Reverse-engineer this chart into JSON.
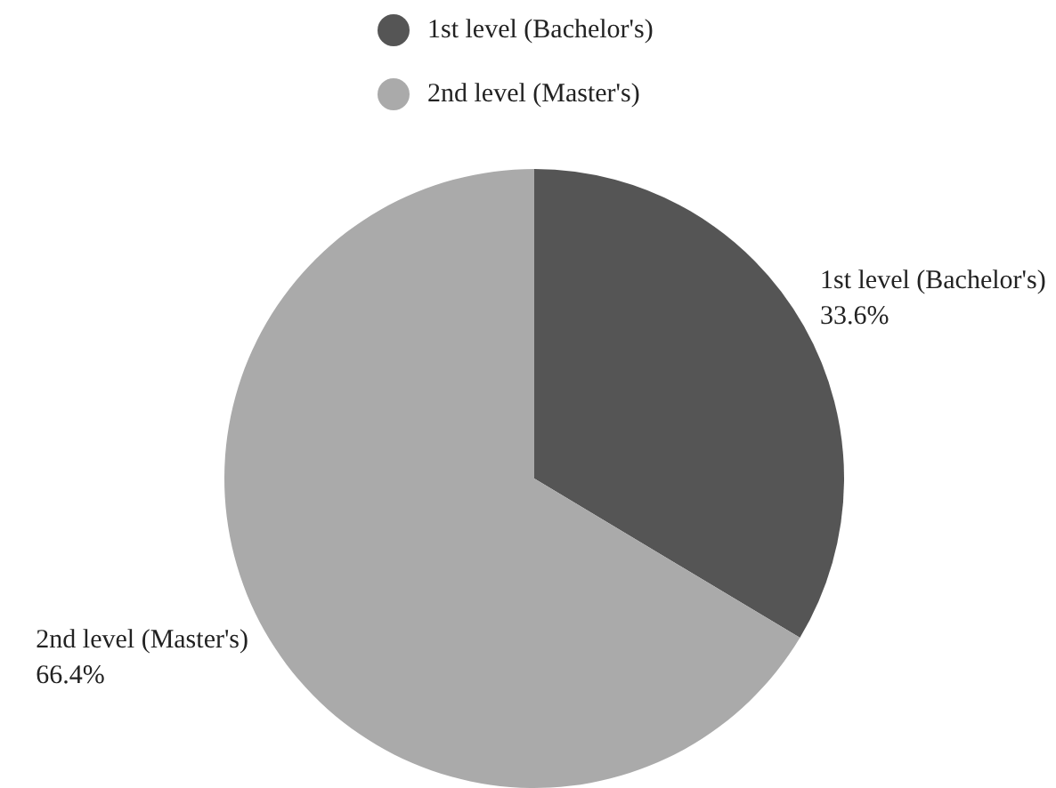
{
  "chart_data": {
    "type": "pie",
    "categories": [
      "1st level (Bachelor's)",
      "2nd level (Master's)"
    ],
    "values": [
      33.6,
      66.4
    ],
    "colors": [
      "#555555",
      "#aaaaaa"
    ],
    "value_labels": [
      "33.6%",
      "66.4%"
    ],
    "legend": "top"
  }
}
